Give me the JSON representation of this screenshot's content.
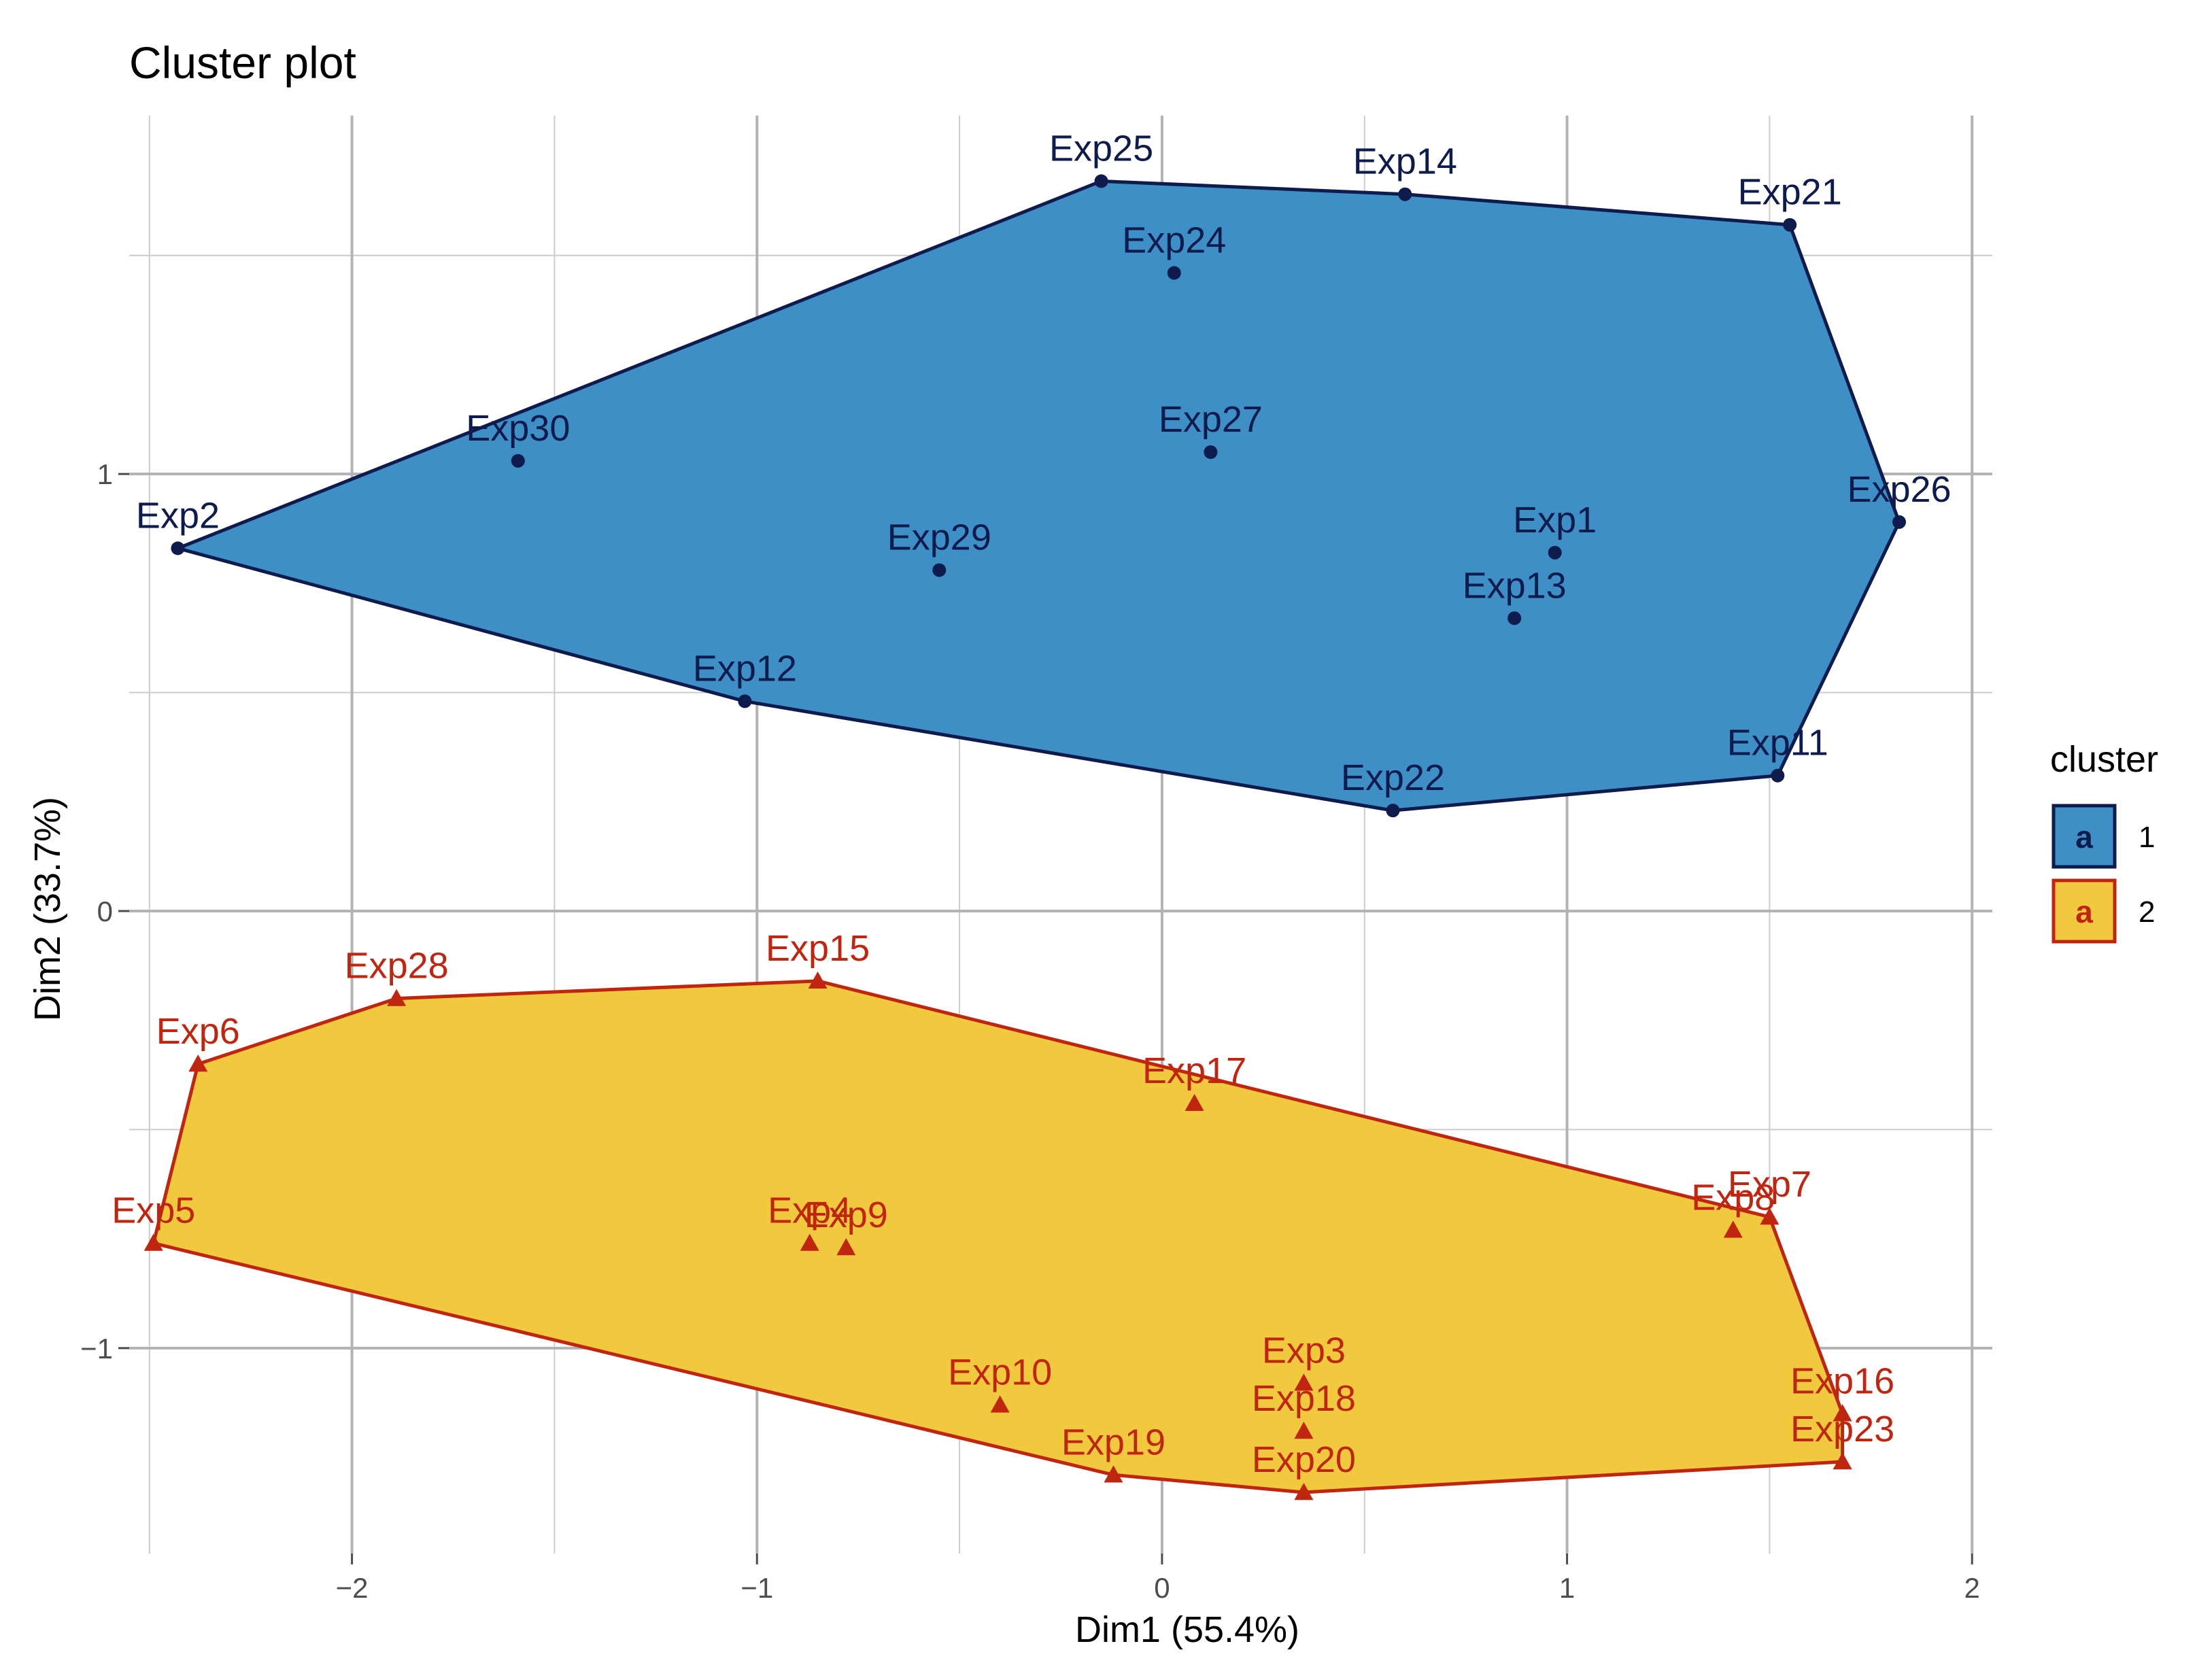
{
  "chart_data": {
    "type": "scatter",
    "title": "Cluster plot",
    "xlabel": "Dim1 (55.4%)",
    "ylabel": "Dim2 (33.7%)",
    "xlim": [
      -2.55,
      2.05
    ],
    "ylim": [
      -1.47,
      1.82
    ],
    "x_ticks": [
      -2,
      -1,
      0,
      1,
      2
    ],
    "x_tick_labels": [
      "−2",
      "−1",
      "0",
      "1",
      "2"
    ],
    "y_ticks": [
      -1,
      0,
      1
    ],
    "y_tick_labels": [
      "−1",
      "0",
      "1"
    ],
    "grid": true,
    "legend": {
      "title": "cluster",
      "position": "right",
      "key_glyph": "a",
      "items": [
        {
          "label": "1",
          "fill": "#3f8fc7",
          "stroke": "#0d1b4d"
        },
        {
          "label": "2",
          "fill": "#f0c93f",
          "stroke": "#c0260f"
        }
      ]
    },
    "series": [
      {
        "name": "1",
        "marker": "circle",
        "fill": "#3f8fc7",
        "stroke": "#0d1b4d",
        "hull": [
          "Exp2",
          "Exp25",
          "Exp14",
          "Exp21",
          "Exp26",
          "Exp11",
          "Exp22",
          "Exp12"
        ],
        "points": [
          {
            "label": "Exp25",
            "x": -0.15,
            "y": 1.67
          },
          {
            "label": "Exp14",
            "x": 0.6,
            "y": 1.64
          },
          {
            "label": "Exp21",
            "x": 1.55,
            "y": 1.57
          },
          {
            "label": "Exp24",
            "x": 0.03,
            "y": 1.46
          },
          {
            "label": "Exp30",
            "x": -1.59,
            "y": 1.03
          },
          {
            "label": "Exp27",
            "x": 0.12,
            "y": 1.05
          },
          {
            "label": "Exp2",
            "x": -2.43,
            "y": 0.83
          },
          {
            "label": "Exp26",
            "x": 1.82,
            "y": 0.89
          },
          {
            "label": "Exp29",
            "x": -0.55,
            "y": 0.78
          },
          {
            "label": "Exp1",
            "x": 0.97,
            "y": 0.82
          },
          {
            "label": "Exp13",
            "x": 0.87,
            "y": 0.67
          },
          {
            "label": "Exp12",
            "x": -1.03,
            "y": 0.48
          },
          {
            "label": "Exp11",
            "x": 1.52,
            "y": 0.31
          },
          {
            "label": "Exp22",
            "x": 0.57,
            "y": 0.23
          }
        ]
      },
      {
        "name": "2",
        "marker": "triangle",
        "fill": "#f0c93f",
        "stroke": "#c0260f",
        "hull": [
          "Exp5",
          "Exp6",
          "Exp28",
          "Exp15",
          "Exp7",
          "Exp16",
          "Exp23",
          "Exp20",
          "Exp19"
        ],
        "points": [
          {
            "label": "Exp15",
            "x": -0.85,
            "y": -0.16
          },
          {
            "label": "Exp28",
            "x": -1.89,
            "y": -0.2
          },
          {
            "label": "Exp6",
            "x": -2.38,
            "y": -0.35
          },
          {
            "label": "Exp17",
            "x": 0.08,
            "y": -0.44
          },
          {
            "label": "Exp5",
            "x": -2.49,
            "y": -0.76
          },
          {
            "label": "Exp4",
            "x": -0.87,
            "y": -0.76
          },
          {
            "label": "Exp9",
            "x": -0.78,
            "y": -0.77
          },
          {
            "label": "Exp8",
            "x": 1.41,
            "y": -0.73
          },
          {
            "label": "Exp7",
            "x": 1.5,
            "y": -0.7
          },
          {
            "label": "Exp3",
            "x": 0.35,
            "y": -1.08
          },
          {
            "label": "Exp18",
            "x": 0.35,
            "y": -1.19
          },
          {
            "label": "Exp10",
            "x": -0.4,
            "y": -1.13
          },
          {
            "label": "Exp19",
            "x": -0.12,
            "y": -1.29
          },
          {
            "label": "Exp20",
            "x": 0.35,
            "y": -1.33
          },
          {
            "label": "Exp16",
            "x": 1.68,
            "y": -1.15
          },
          {
            "label": "Exp23",
            "x": 1.68,
            "y": -1.26
          }
        ]
      }
    ]
  }
}
